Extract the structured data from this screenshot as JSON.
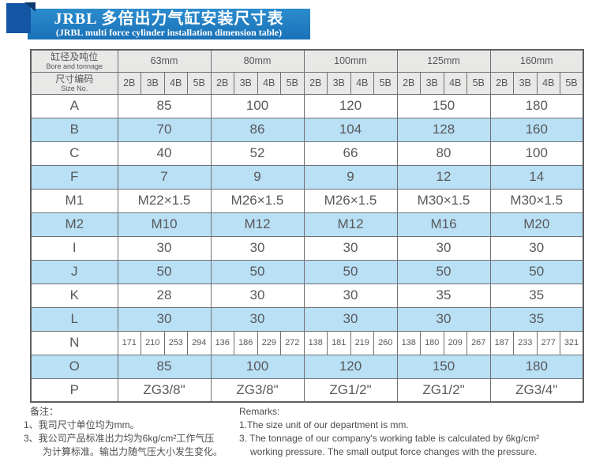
{
  "banner": {
    "title_cn": "JRBL 多倍出力气缸安装尺寸表",
    "title_en": "(JRBL multi force cylinder installation dimension table)"
  },
  "table": {
    "corner": {
      "bore_cn": "缸径及吨位",
      "bore_en": "Bore and tonnage",
      "size_cn": "尺寸编码",
      "size_en": "Size No."
    },
    "bores": [
      "63mm",
      "80mm",
      "100mm",
      "125mm",
      "160mm"
    ],
    "size_codes": [
      "2B",
      "3B",
      "4B",
      "5B"
    ],
    "rows": [
      {
        "label": "A",
        "type": "merged",
        "shade": false,
        "values": [
          "85",
          "100",
          "120",
          "150",
          "180"
        ]
      },
      {
        "label": "B",
        "type": "merged",
        "shade": true,
        "values": [
          "70",
          "86",
          "104",
          "128",
          "160"
        ]
      },
      {
        "label": "C",
        "type": "merged",
        "shade": false,
        "values": [
          "40",
          "52",
          "66",
          "80",
          "100"
        ]
      },
      {
        "label": "F",
        "type": "merged",
        "shade": true,
        "values": [
          "7",
          "9",
          "9",
          "12",
          "14"
        ]
      },
      {
        "label": "M1",
        "type": "merged",
        "shade": false,
        "values": [
          "M22×1.5",
          "M26×1.5",
          "M26×1.5",
          "M30×1.5",
          "M30×1.5"
        ]
      },
      {
        "label": "M2",
        "type": "merged",
        "shade": true,
        "values": [
          "M10",
          "M12",
          "M12",
          "M16",
          "M20"
        ]
      },
      {
        "label": "I",
        "type": "merged",
        "shade": false,
        "values": [
          "30",
          "30",
          "30",
          "30",
          "30"
        ]
      },
      {
        "label": "J",
        "type": "merged",
        "shade": true,
        "values": [
          "50",
          "50",
          "50",
          "50",
          "50"
        ]
      },
      {
        "label": "K",
        "type": "merged",
        "shade": false,
        "values": [
          "28",
          "30",
          "30",
          "35",
          "35"
        ]
      },
      {
        "label": "L",
        "type": "merged",
        "shade": true,
        "values": [
          "30",
          "30",
          "30",
          "30",
          "35"
        ]
      },
      {
        "label": "N",
        "type": "cells",
        "shade": false,
        "values": [
          "171",
          "210",
          "253",
          "294",
          "136",
          "186",
          "229",
          "272",
          "138",
          "181",
          "219",
          "260",
          "138",
          "180",
          "209",
          "267",
          "187",
          "233",
          "277",
          "321"
        ]
      },
      {
        "label": "O",
        "type": "merged",
        "shade": true,
        "values": [
          "85",
          "100",
          "120",
          "150",
          "180"
        ]
      },
      {
        "label": "P",
        "type": "merged",
        "shade": false,
        "values": [
          "ZG3/8\"",
          "ZG3/8\"",
          "ZG1/2\"",
          "ZG1/2\"",
          "ZG3/4\""
        ]
      }
    ]
  },
  "notes_cn": {
    "title": "备注：",
    "line1": "1、我司尺寸单位均为mm。",
    "line2": "3、我公司产品标准出力均为6kg/cm²工作气压",
    "line3": "为计算标准。输出力随气压大小发生变化。"
  },
  "notes_en": {
    "title": "Remarks:",
    "line1": "1.The size unit of our department is mm.",
    "line2": "3. The tonnage of our company's working table is calculated by 6kg/cm²",
    "line3": "working pressure. The small output force changes with the pressure."
  },
  "colors": {
    "banner_blue": "#1e7cc0",
    "corner_square_blue": "#1356a4",
    "fold_navy": "#0f3a6e",
    "header_gray": "#e8e8e6",
    "row_stripe_blue": "#b9e0f5",
    "text_gray": "#58595b"
  }
}
